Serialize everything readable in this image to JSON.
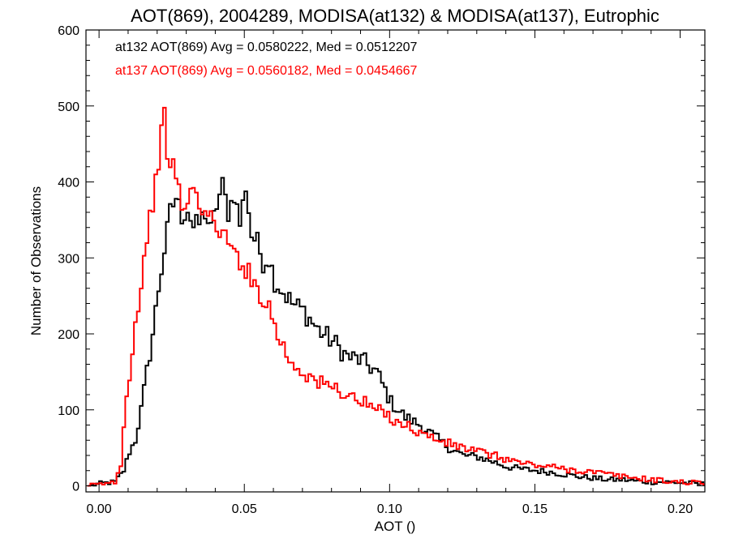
{
  "chart_data": {
    "type": "line",
    "title": "AOT(869), 2004289, MODISA(at132) & MODISA(at137), Eutrophic",
    "xlabel": "AOT ()",
    "ylabel": "Number of Observations",
    "xlim": [
      -0.0045,
      0.2085
    ],
    "ylim": [
      -8,
      600
    ],
    "xticks": [
      "0.00",
      "0.05",
      "0.10",
      "0.15",
      "0.20"
    ],
    "yticks": [
      "0",
      "100",
      "200",
      "300",
      "400",
      "500",
      "600"
    ],
    "grid": false,
    "legend_position": "top-left",
    "annotations": [
      {
        "text": "at132 AOT(869) Avg = 0.0580222, Med = 0.0512207",
        "color": "#000000"
      },
      {
        "text": "at137 AOT(869) Avg = 0.0560182, Med = 0.0454667",
        "color": "#ff0000"
      }
    ],
    "series": [
      {
        "color": "#000000",
        "x": [
          -0.004,
          0.0,
          0.005,
          0.008,
          0.01,
          0.012,
          0.014,
          0.016,
          0.018,
          0.02,
          0.022,
          0.024,
          0.026,
          0.028,
          0.03,
          0.032,
          0.034,
          0.036,
          0.038,
          0.04,
          0.042,
          0.044,
          0.046,
          0.048,
          0.05,
          0.052,
          0.054,
          0.056,
          0.058,
          0.06,
          0.063,
          0.066,
          0.07,
          0.075,
          0.08,
          0.085,
          0.09,
          0.095,
          0.1,
          0.105,
          0.11,
          0.115,
          0.12,
          0.125,
          0.13,
          0.135,
          0.14,
          0.145,
          0.15,
          0.155,
          0.16,
          0.165,
          0.17,
          0.175,
          0.18,
          0.185,
          0.19,
          0.195,
          0.2,
          0.205,
          0.208
        ],
        "y": [
          0,
          3,
          5,
          20,
          45,
          60,
          100,
          150,
          200,
          260,
          310,
          360,
          380,
          355,
          365,
          340,
          345,
          360,
          335,
          370,
          395,
          360,
          385,
          345,
          395,
          330,
          320,
          295,
          300,
          270,
          255,
          240,
          230,
          205,
          190,
          170,
          165,
          150,
          110,
          90,
          80,
          65,
          50,
          40,
          38,
          32,
          25,
          22,
          20,
          18,
          15,
          12,
          10,
          8,
          8,
          6,
          5,
          5,
          4,
          3,
          2
        ]
      },
      {
        "color": "#ff0000",
        "x": [
          -0.004,
          0.0,
          0.005,
          0.007,
          0.009,
          0.011,
          0.013,
          0.015,
          0.017,
          0.019,
          0.021,
          0.022,
          0.023,
          0.025,
          0.027,
          0.029,
          0.031,
          0.033,
          0.035,
          0.037,
          0.04,
          0.043,
          0.046,
          0.049,
          0.052,
          0.055,
          0.058,
          0.061,
          0.065,
          0.07,
          0.075,
          0.08,
          0.085,
          0.09,
          0.095,
          0.1,
          0.105,
          0.11,
          0.115,
          0.12,
          0.125,
          0.13,
          0.135,
          0.14,
          0.145,
          0.15,
          0.155,
          0.16,
          0.165,
          0.17,
          0.175,
          0.18,
          0.185,
          0.19,
          0.195,
          0.2,
          0.205,
          0.208
        ],
        "y": [
          0,
          2,
          5,
          30,
          120,
          180,
          240,
          300,
          350,
          400,
          460,
          485,
          440,
          420,
          385,
          360,
          390,
          380,
          370,
          350,
          345,
          325,
          305,
          295,
          270,
          255,
          235,
          200,
          165,
          150,
          135,
          130,
          120,
          110,
          100,
          90,
          80,
          70,
          62,
          55,
          50,
          45,
          40,
          35,
          30,
          27,
          25,
          22,
          20,
          18,
          15,
          12,
          10,
          8,
          6,
          5,
          4,
          3
        ]
      }
    ]
  }
}
